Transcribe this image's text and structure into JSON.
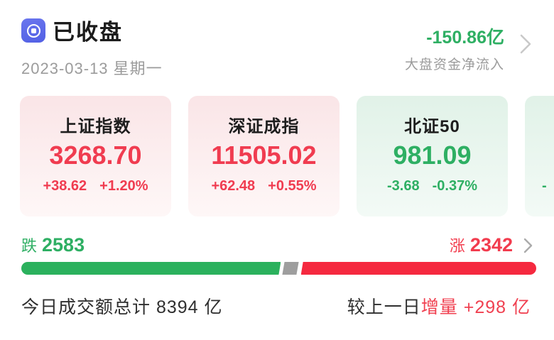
{
  "header": {
    "status_title": "已收盘",
    "date": "2023-03-13 星期一",
    "net_inflow": {
      "value": "-150.86亿",
      "label": "大盘资金净流入"
    }
  },
  "indices": [
    {
      "title": "上证指数",
      "value": "3268.70",
      "change": "+38.62",
      "change_pct": "+1.20%",
      "trend": "up"
    },
    {
      "title": "深证成指",
      "value": "11505.02",
      "change": "+62.48",
      "change_pct": "+0.55%",
      "trend": "up"
    },
    {
      "title": "北证50",
      "value": "981.09",
      "change": "-3.68",
      "change_pct": "-0.37%",
      "trend": "down"
    },
    {
      "title": "",
      "value": "",
      "change": "-",
      "change_pct": "",
      "trend": "down"
    }
  ],
  "breadth": {
    "down_label": "跌",
    "down_count": "2583",
    "up_label": "涨",
    "up_count": "2342",
    "bar": {
      "down_pct": 50.4,
      "flat_pct": 2.8,
      "up_pct": 45.6
    }
  },
  "turnover": {
    "today_text": "今日成交额总计 8394 亿",
    "vs_prev_label": "较上一日",
    "vs_prev_delta": "增量 +298 亿"
  },
  "colors": {
    "up_red": "#F03C50",
    "down_green": "#2EAF63",
    "bar_red": "#F5293F",
    "bar_green": "#2BB15D",
    "bar_flat_gray": "#9E9E9E",
    "icon_indigo": "#5E6AEA",
    "muted_gray": "#9B9B9B"
  }
}
